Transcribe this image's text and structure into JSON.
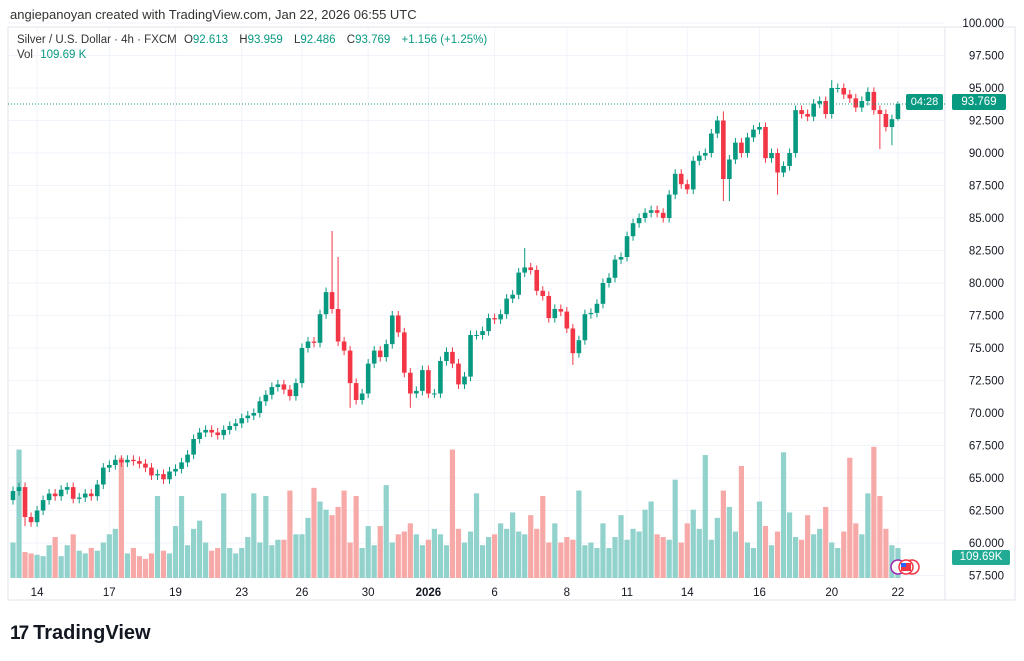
{
  "credit": "angiepanoyan created with TradingView.com, Jan 22, 2026 06:55 UTC",
  "legend": {
    "symbol": "Silver / U.S. Dollar · 4h · FXCM",
    "o_label": "O",
    "o": "92.613",
    "h_label": "H",
    "h": "93.959",
    "l_label": "L",
    "l": "92.486",
    "c_label": "C",
    "c": "93.769",
    "change": "+1.156 (+1.25%)",
    "vol_label": "Vol",
    "vol": "109.69 K"
  },
  "price_tag": {
    "price": "93.769",
    "countdown": "04:28"
  },
  "volume_tag": "109.69K",
  "logo": {
    "mark": "17",
    "text": "TradingView"
  },
  "colors": {
    "up": "#089981",
    "down": "#f23645",
    "up_vol": "#92d2cc",
    "down_vol": "#f7a9a7",
    "grid": "#f0f3fa"
  },
  "chart_data": {
    "type": "candlestick",
    "title": "Silver / U.S. Dollar · 4h · FXCM",
    "ylim": [
      57.5,
      100
    ],
    "y_ticks": [
      "100.000",
      "97.500",
      "95.000",
      "92.500",
      "90.000",
      "87.500",
      "85.000",
      "82.500",
      "80.000",
      "77.500",
      "75.000",
      "72.500",
      "70.000",
      "67.500",
      "65.000",
      "62.500",
      "60.000",
      "57.500"
    ],
    "x_ticks": [
      {
        "label": "14",
        "index": 4
      },
      {
        "label": "17",
        "index": 16
      },
      {
        "label": "19",
        "index": 27
      },
      {
        "label": "23",
        "index": 38
      },
      {
        "label": "26",
        "index": 48
      },
      {
        "label": "30",
        "index": 59
      },
      {
        "label": "2026",
        "index": 69
      },
      {
        "label": "6",
        "index": 80
      },
      {
        "label": "8",
        "index": 92
      },
      {
        "label": "11",
        "index": 102
      },
      {
        "label": "14",
        "index": 112
      },
      {
        "label": "16",
        "index": 124
      },
      {
        "label": "20",
        "index": 136
      },
      {
        "label": "22",
        "index": 147
      }
    ],
    "first_open": 63.3,
    "last_open": 92.613,
    "close": [
      64.0,
      64.3,
      62.0,
      61.6,
      62.5,
      63.3,
      63.8,
      63.6,
      64.1,
      64.3,
      63.4,
      63.5,
      63.8,
      63.6,
      64.5,
      65.8,
      66.0,
      66.4,
      66.2,
      66.4,
      66.3,
      66.1,
      65.8,
      65.2,
      65.3,
      64.9,
      65.5,
      65.7,
      66.2,
      66.8,
      68.0,
      68.5,
      68.7,
      68.5,
      68.3,
      68.7,
      69.0,
      69.2,
      69.6,
      69.8,
      70.0,
      70.9,
      71.4,
      72.0,
      72.2,
      71.8,
      71.3,
      72.3,
      75.0,
      75.5,
      75.4,
      77.6,
      79.3,
      78.0,
      75.5,
      74.8,
      72.3,
      71.0,
      71.5,
      73.8,
      74.8,
      74.3,
      75.3,
      77.5,
      76.2,
      73.1,
      71.5,
      71.7,
      73.3,
      71.5,
      71.5,
      74.0,
      74.7,
      73.8,
      72.2,
      72.8,
      76.0,
      76.0,
      76.3,
      77.3,
      77.2,
      77.6,
      78.8,
      79.1,
      80.8,
      81.2,
      81.0,
      79.4,
      79.0,
      77.3,
      78.0,
      77.8,
      76.5,
      74.6,
      75.6,
      77.6,
      77.7,
      78.4,
      80.0,
      80.4,
      81.8,
      82.0,
      83.6,
      84.6,
      85.0,
      85.4,
      85.6,
      85.4,
      85.0,
      86.8,
      88.4,
      87.6,
      87.2,
      89.4,
      89.8,
      90.0,
      91.5,
      92.5,
      88.0,
      89.5,
      90.8,
      90.0,
      91.2,
      91.8,
      92.0,
      89.6,
      90.0,
      88.5,
      89.0,
      90.0,
      93.3,
      93.0,
      92.8,
      93.8,
      94.0,
      93.0,
      95.0,
      95.0,
      94.5,
      94.2,
      93.5,
      94.0,
      94.7,
      93.3,
      93.0,
      92.0,
      92.6,
      93.769
    ],
    "wick_extremes": [
      {
        "index": 2,
        "low": 61.3
      },
      {
        "index": 53,
        "high": 84.0
      },
      {
        "index": 54,
        "high": 82.0
      },
      {
        "index": 56,
        "low": 70.4
      },
      {
        "index": 66,
        "low": 70.4
      },
      {
        "index": 85,
        "high": 82.7
      },
      {
        "index": 93,
        "low": 73.7
      },
      {
        "index": 118,
        "high": 93.2,
        "low": 86.3
      },
      {
        "index": 119,
        "low": 86.3
      },
      {
        "index": 127,
        "low": 86.8
      },
      {
        "index": 136,
        "high": 95.6
      },
      {
        "index": 144,
        "low": 90.3
      },
      {
        "index": 146,
        "low": 90.6
      },
      {
        "index": 147,
        "high": 93.959,
        "low": 92.486
      }
    ],
    "volume_k": [
      130,
      470,
      95,
      90,
      85,
      80,
      120,
      150,
      80,
      120,
      160,
      100,
      90,
      110,
      100,
      130,
      160,
      180,
      440,
      90,
      110,
      80,
      70,
      90,
      300,
      100,
      90,
      190,
      300,
      120,
      180,
      210,
      130,
      100,
      110,
      310,
      110,
      90,
      110,
      150,
      310,
      130,
      300,
      120,
      140,
      140,
      320,
      160,
      160,
      220,
      330,
      280,
      250,
      230,
      260,
      320,
      130,
      300,
      110,
      190,
      120,
      190,
      340,
      130,
      160,
      170,
      200,
      160,
      120,
      140,
      180,
      160,
      120,
      470,
      180,
      130,
      170,
      310,
      120,
      150,
      160,
      200,
      180,
      240,
      170,
      160,
      230,
      180,
      300,
      130,
      200,
      130,
      150,
      140,
      320,
      120,
      130,
      110,
      200,
      110,
      150,
      230,
      140,
      180,
      170,
      250,
      280,
      160,
      150,
      140,
      360,
      130,
      200,
      250,
      180,
      450,
      140,
      220,
      320,
      260,
      170,
      410,
      130,
      110,
      280,
      190,
      120,
      170,
      460,
      240,
      150,
      140,
      230,
      160,
      180,
      260,
      130,
      110,
      170,
      440,
      200,
      160,
      310,
      480,
      300,
      180,
      120,
      109.69
    ],
    "current_price": 93.769
  }
}
